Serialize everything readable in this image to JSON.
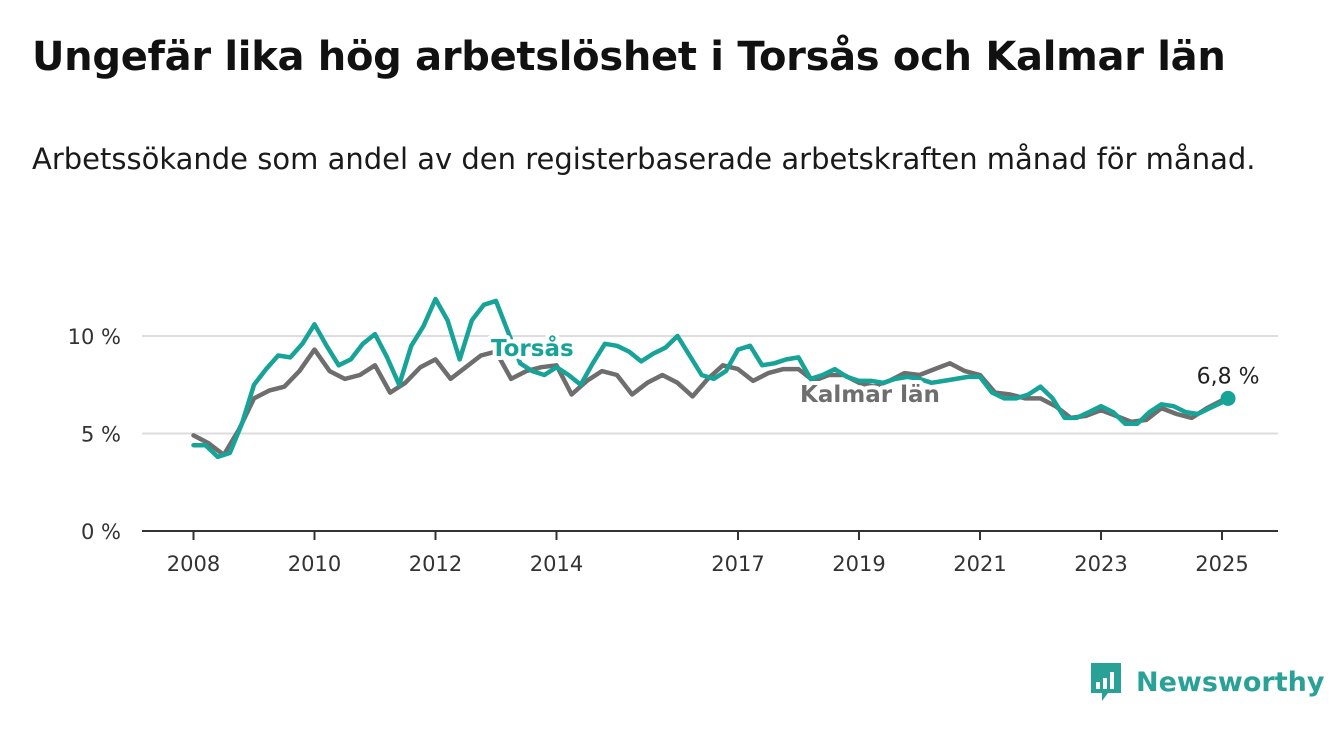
{
  "title": "Ungefär lika hög arbetslöshet i Torsås och Kalmar län",
  "subtitle": "Arbetssökande som andel av den registerbaserade arbetskraften månad för månad.",
  "brand": {
    "name": "Newsworthy",
    "color": "#2aa197"
  },
  "chart_data": {
    "type": "line",
    "x_ticks": [
      "2008",
      "2010",
      "2012",
      "2014",
      "2017",
      "2019",
      "2021",
      "2023",
      "2025"
    ],
    "y_ticks": [
      "0 %",
      "5 %",
      "10 %"
    ],
    "ylim": [
      0,
      10
    ],
    "xlim": [
      2007.2,
      2026.0
    ],
    "grid": true,
    "end_label": "6,8 %",
    "series": [
      {
        "name": "Kalmar län",
        "color": "#6e6e6e",
        "x": [
          2008.0,
          2008.25,
          2008.5,
          2008.75,
          2009.0,
          2009.25,
          2009.5,
          2009.75,
          2010.0,
          2010.25,
          2010.5,
          2010.75,
          2011.0,
          2011.25,
          2011.5,
          2011.75,
          2012.0,
          2012.25,
          2012.5,
          2012.75,
          2013.0,
          2013.25,
          2013.5,
          2013.75,
          2014.0,
          2014.25,
          2014.5,
          2014.75,
          2015.0,
          2015.25,
          2015.5,
          2015.75,
          2016.0,
          2016.25,
          2016.5,
          2016.75,
          2017.0,
          2017.25,
          2017.5,
          2017.75,
          2018.0,
          2018.25,
          2018.5,
          2018.75,
          2019.0,
          2019.25,
          2019.5,
          2019.75,
          2020.0,
          2020.25,
          2020.5,
          2020.75,
          2021.0,
          2021.25,
          2021.5,
          2021.75,
          2022.0,
          2022.25,
          2022.5,
          2022.75,
          2023.0,
          2023.25,
          2023.5,
          2023.75,
          2024.0,
          2024.25,
          2024.5,
          2024.75,
          2025.0,
          2025.1
        ],
        "values": [
          4.9,
          4.5,
          3.9,
          5.2,
          6.8,
          7.2,
          7.4,
          8.2,
          9.3,
          8.2,
          7.8,
          8.0,
          8.5,
          7.1,
          7.6,
          8.4,
          8.8,
          7.8,
          8.4,
          9.0,
          9.2,
          7.8,
          8.2,
          8.4,
          8.5,
          7.0,
          7.7,
          8.2,
          8.0,
          7.0,
          7.6,
          8.0,
          7.6,
          6.9,
          7.8,
          8.5,
          8.3,
          7.7,
          8.1,
          8.3,
          8.3,
          7.7,
          8.0,
          8.0,
          7.6,
          7.4,
          7.7,
          8.1,
          8.0,
          8.3,
          8.6,
          8.2,
          8.0,
          7.1,
          7.0,
          6.8,
          6.8,
          6.4,
          5.8,
          5.9,
          6.2,
          5.9,
          5.6,
          5.7,
          6.3,
          6.0,
          5.8,
          6.3,
          6.7,
          6.8
        ]
      },
      {
        "name": "Torsås",
        "color": "#17a398",
        "x": [
          2008.0,
          2008.2,
          2008.4,
          2008.6,
          2008.8,
          2009.0,
          2009.2,
          2009.4,
          2009.6,
          2009.8,
          2010.0,
          2010.2,
          2010.4,
          2010.6,
          2010.8,
          2011.0,
          2011.2,
          2011.4,
          2011.6,
          2011.8,
          2012.0,
          2012.2,
          2012.4,
          2012.6,
          2012.8,
          2013.0,
          2013.2,
          2013.4,
          2013.6,
          2013.8,
          2014.0,
          2014.2,
          2014.4,
          2014.6,
          2014.8,
          2015.0,
          2015.2,
          2015.4,
          2015.6,
          2015.8,
          2016.0,
          2016.2,
          2016.4,
          2016.6,
          2016.8,
          2017.0,
          2017.2,
          2017.4,
          2017.6,
          2017.8,
          2018.0,
          2018.2,
          2018.4,
          2018.6,
          2018.8,
          2019.0,
          2019.2,
          2019.4,
          2019.6,
          2019.8,
          2020.0,
          2020.2,
          2020.4,
          2020.6,
          2020.8,
          2021.0,
          2021.2,
          2021.4,
          2021.6,
          2021.8,
          2022.0,
          2022.2,
          2022.4,
          2022.6,
          2022.8,
          2023.0,
          2023.2,
          2023.4,
          2023.6,
          2023.8,
          2024.0,
          2024.2,
          2024.4,
          2024.6,
          2024.8,
          2025.0,
          2025.1
        ],
        "values": [
          4.4,
          4.4,
          3.8,
          4.0,
          5.5,
          7.5,
          8.3,
          9.0,
          8.9,
          9.6,
          10.6,
          9.5,
          8.5,
          8.8,
          9.6,
          10.1,
          8.9,
          7.5,
          9.5,
          10.5,
          11.9,
          10.8,
          8.8,
          10.8,
          11.6,
          11.8,
          10.2,
          8.6,
          8.2,
          8.0,
          8.4,
          8.0,
          7.5,
          8.6,
          9.6,
          9.5,
          9.2,
          8.7,
          9.1,
          9.4,
          10.0,
          9.0,
          8.0,
          7.8,
          8.2,
          9.3,
          9.5,
          8.5,
          8.6,
          8.8,
          8.9,
          7.8,
          8.0,
          8.3,
          7.9,
          7.7,
          7.7,
          7.6,
          7.8,
          7.9,
          7.8,
          7.6,
          7.7,
          7.8,
          7.9,
          7.9,
          7.1,
          6.8,
          6.8,
          7.0,
          7.4,
          6.8,
          5.8,
          5.8,
          6.1,
          6.4,
          6.1,
          5.5,
          5.5,
          6.1,
          6.5,
          6.4,
          6.1,
          6.0,
          6.3,
          6.6,
          6.8
        ]
      }
    ]
  }
}
